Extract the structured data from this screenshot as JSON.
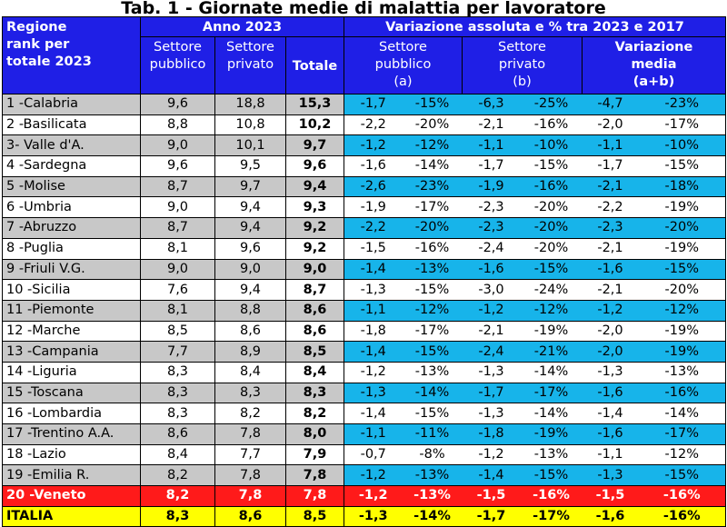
{
  "title": "Tab. 1 - Giornate medie di malattia per lavoratore",
  "header": {
    "rank_label_line1": "Regione",
    "rank_label_line2": "rank per",
    "rank_label_line3": "totale 2023",
    "group_2023": "Anno 2023",
    "group_var": "Variazione assoluta e % tra 2023 e 2017",
    "col_pubblico_line1": "Settore",
    "col_pubblico_line2": "pubblico",
    "col_privato_line1": "Settore",
    "col_privato_line2": "privato",
    "col_totale": "Totale",
    "var_pubblico_line1": "Settore",
    "var_pubblico_line2": "pubblico",
    "var_pubblico_line3": "(a)",
    "var_privato_line1": "Settore",
    "var_privato_line2": "privato",
    "var_privato_line3": "(b)",
    "var_media_line1": "Variazione",
    "var_media_line2": "media",
    "var_media_line3": "(a+b)"
  },
  "rows": [
    {
      "name": "1 -Calabria",
      "pub": "9,6",
      "priv": "18,8",
      "tot": "15,3",
      "va": "-1,7",
      "vap": "-15%",
      "vb": "-6,3",
      "vbp": "-25%",
      "vm": "-4,7",
      "vmp": "-23%"
    },
    {
      "name": "2 -Basilicata",
      "pub": "8,8",
      "priv": "10,8",
      "tot": "10,2",
      "va": "-2,2",
      "vap": "-20%",
      "vb": "-2,1",
      "vbp": "-16%",
      "vm": "-2,0",
      "vmp": "-17%"
    },
    {
      "name": "3- Valle d'A.",
      "pub": "9,0",
      "priv": "10,1",
      "tot": "9,7",
      "va": "-1,2",
      "vap": "-12%",
      "vb": "-1,1",
      "vbp": "-10%",
      "vm": "-1,1",
      "vmp": "-10%"
    },
    {
      "name": "4 -Sardegna",
      "pub": "9,6",
      "priv": "9,5",
      "tot": "9,6",
      "va": "-1,6",
      "vap": "-14%",
      "vb": "-1,7",
      "vbp": "-15%",
      "vm": "-1,7",
      "vmp": "-15%"
    },
    {
      "name": "5 -Molise",
      "pub": "8,7",
      "priv": "9,7",
      "tot": "9,4",
      "va": "-2,6",
      "vap": "-23%",
      "vb": "-1,9",
      "vbp": "-16%",
      "vm": "-2,1",
      "vmp": "-18%"
    },
    {
      "name": "6 -Umbria",
      "pub": "9,0",
      "priv": "9,4",
      "tot": "9,3",
      "va": "-1,9",
      "vap": "-17%",
      "vb": "-2,3",
      "vbp": "-20%",
      "vm": "-2,2",
      "vmp": "-19%"
    },
    {
      "name": "7 -Abruzzo",
      "pub": "8,7",
      "priv": "9,4",
      "tot": "9,2",
      "va": "-2,2",
      "vap": "-20%",
      "vb": "-2,3",
      "vbp": "-20%",
      "vm": "-2,3",
      "vmp": "-20%"
    },
    {
      "name": "8 -Puglia",
      "pub": "8,1",
      "priv": "9,6",
      "tot": "9,2",
      "va": "-1,5",
      "vap": "-16%",
      "vb": "-2,4",
      "vbp": "-20%",
      "vm": "-2,1",
      "vmp": "-19%"
    },
    {
      "name": "9 -Friuli V.G.",
      "pub": "9,0",
      "priv": "9,0",
      "tot": "9,0",
      "va": "-1,4",
      "vap": "-13%",
      "vb": "-1,6",
      "vbp": "-15%",
      "vm": "-1,6",
      "vmp": "-15%"
    },
    {
      "name": "10 -Sicilia",
      "pub": "7,6",
      "priv": "9,4",
      "tot": "8,7",
      "va": "-1,3",
      "vap": "-15%",
      "vb": "-3,0",
      "vbp": "-24%",
      "vm": "-2,1",
      "vmp": "-20%"
    },
    {
      "name": "11 -Piemonte",
      "pub": "8,1",
      "priv": "8,8",
      "tot": "8,6",
      "va": "-1,1",
      "vap": "-12%",
      "vb": "-1,2",
      "vbp": "-12%",
      "vm": "-1,2",
      "vmp": "-12%"
    },
    {
      "name": "12 -Marche",
      "pub": "8,5",
      "priv": "8,6",
      "tot": "8,6",
      "va": "-1,8",
      "vap": "-17%",
      "vb": "-2,1",
      "vbp": "-19%",
      "vm": "-2,0",
      "vmp": "-19%"
    },
    {
      "name": "13 -Campania",
      "pub": "7,7",
      "priv": "8,9",
      "tot": "8,5",
      "va": "-1,4",
      "vap": "-15%",
      "vb": "-2,4",
      "vbp": "-21%",
      "vm": "-2,0",
      "vmp": "-19%"
    },
    {
      "name": "14 -Liguria",
      "pub": "8,3",
      "priv": "8,4",
      "tot": "8,4",
      "va": "-1,2",
      "vap": "-13%",
      "vb": "-1,3",
      "vbp": "-14%",
      "vm": "-1,3",
      "vmp": "-13%"
    },
    {
      "name": "15 -Toscana",
      "pub": "8,3",
      "priv": "8,3",
      "tot": "8,3",
      "va": "-1,3",
      "vap": "-14%",
      "vb": "-1,7",
      "vbp": "-17%",
      "vm": "-1,6",
      "vmp": "-16%"
    },
    {
      "name": "16 -Lombardia",
      "pub": "8,3",
      "priv": "8,2",
      "tot": "8,2",
      "va": "-1,4",
      "vap": "-15%",
      "vb": "-1,3",
      "vbp": "-14%",
      "vm": "-1,4",
      "vmp": "-14%"
    },
    {
      "name": "17 -Trentino A.A.",
      "pub": "8,6",
      "priv": "7,8",
      "tot": "8,0",
      "va": "-1,1",
      "vap": "-11%",
      "vb": "-1,8",
      "vbp": "-19%",
      "vm": "-1,6",
      "vmp": "-17%"
    },
    {
      "name": "18 -Lazio",
      "pub": "8,4",
      "priv": "7,7",
      "tot": "7,9",
      "va": "-0,7",
      "vap": "-8%",
      "vb": "-1,2",
      "vbp": "-13%",
      "vm": "-1,1",
      "vmp": "-12%"
    },
    {
      "name": "19 -Emilia R.",
      "pub": "8,2",
      "priv": "7,8",
      "tot": "7,8",
      "va": "-1,2",
      "vap": "-13%",
      "vb": "-1,4",
      "vbp": "-15%",
      "vm": "-1,3",
      "vmp": "-15%"
    },
    {
      "name": "20 -Veneto",
      "pub": "8,2",
      "priv": "7,8",
      "tot": "7,8",
      "va": "-1,2",
      "vap": "-13%",
      "vb": "-1,5",
      "vbp": "-16%",
      "vm": "-1,5",
      "vmp": "-16%"
    },
    {
      "name": "ITALIA",
      "pub": "8,3",
      "priv": "8,6",
      "tot": "8,5",
      "va": "-1,3",
      "vap": "-14%",
      "vb": "-1,7",
      "vbp": "-17%",
      "vm": "-1,6",
      "vmp": "-16%"
    }
  ],
  "colors": {
    "header_blue": "#1f1fe6",
    "row_gray": "#c8c8c8",
    "row_cyan": "#17b4ea",
    "veneto_red": "#ff1a1a",
    "italia_yellow": "#ffff00"
  }
}
